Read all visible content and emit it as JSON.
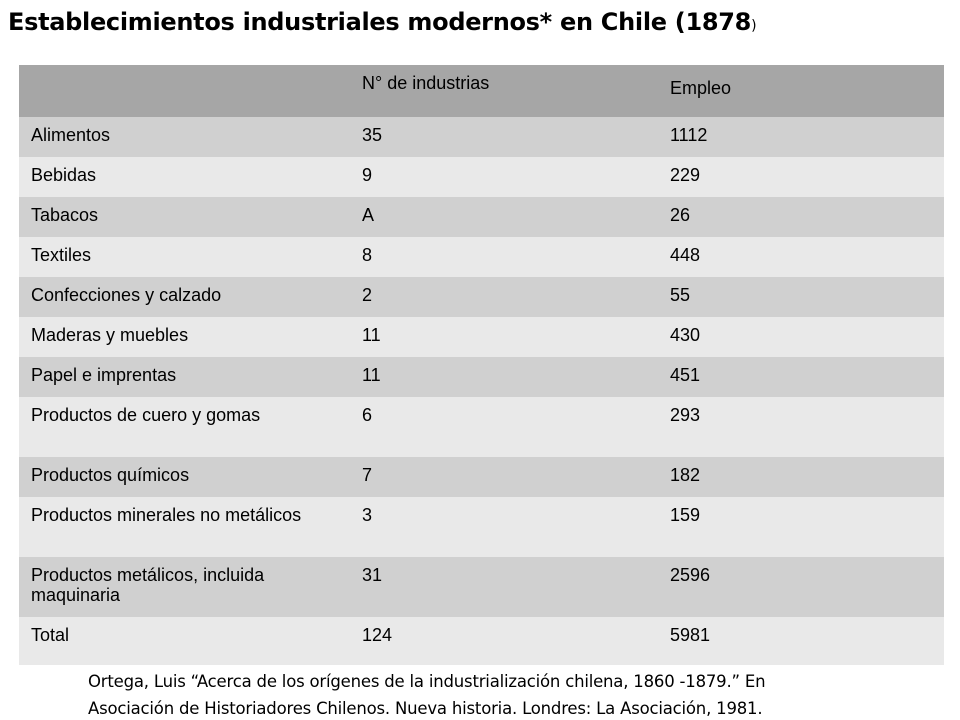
{
  "title": {
    "main": "Establecimientos industriales modernos* en Chile (",
    "year": "1878",
    "close": ")"
  },
  "table": {
    "headers": [
      "",
      "N° de industrias",
      "Empleo"
    ],
    "rows": [
      {
        "sector": "Alimentos",
        "industrias": "35",
        "empleo": "1112"
      },
      {
        "sector": "Bebidas",
        "industrias": "9",
        "empleo": "229"
      },
      {
        "sector": "Tabacos",
        "industrias": "A",
        "empleo": "26"
      },
      {
        "sector": "Textiles",
        "industrias": "8",
        "empleo": "448"
      },
      {
        "sector": "Confecciones y calzado",
        "industrias": "2",
        "empleo": "55"
      },
      {
        "sector": "Maderas y muebles",
        "industrias": "11",
        "empleo": "430"
      },
      {
        "sector": "Papel e imprentas",
        "industrias": "11",
        "empleo": "451"
      },
      {
        "sector": "Productos de cuero y gomas",
        "industrias": "6",
        "empleo": "293"
      },
      {
        "sector": "Productos químicos",
        "industrias": "7",
        "empleo": "182"
      },
      {
        "sector": "Productos minerales no metálicos",
        "industrias": "3",
        "empleo": "159"
      },
      {
        "sector": "Productos metálicos, incluida maquinaria",
        "industrias": "31",
        "empleo": "2596"
      },
      {
        "sector": "Total",
        "industrias": "124",
        "empleo": "5981"
      }
    ]
  },
  "citation": {
    "line1": "Ortega, Luis “Acerca de los orígenes de la industrialización chilena, 1860 -1879.” En",
    "line2": "Asociación de Historiadores Chilenos. Nueva historia. Londres: La Asociación, 1981."
  }
}
